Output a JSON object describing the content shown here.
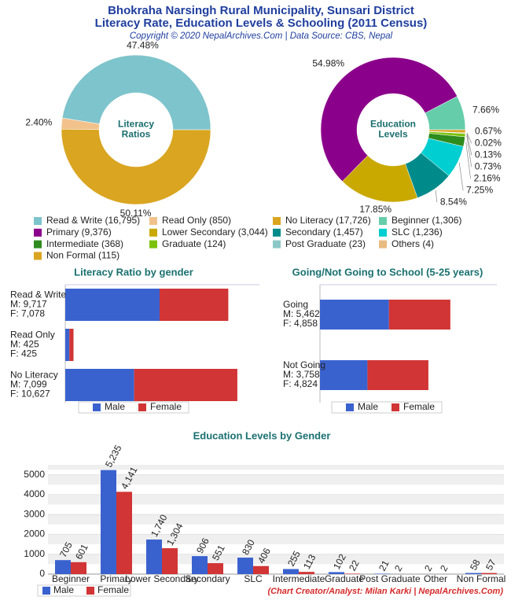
{
  "header": {
    "title": "Bhokraha Narsingh Rural Municipality, Sunsari District",
    "subtitle": "Literacy Rate, Education Levels & Schooling (2011 Census)",
    "credit": "Copyright © 2020 NepalArchives.Com | Data Source: CBS, Nepal"
  },
  "chart_data": [
    {
      "type": "donut",
      "center_label": [
        "Literacy",
        "Ratios"
      ],
      "values": [
        47.48,
        2.4,
        50.11
      ],
      "value_labels": [
        "47.48%",
        "2.40%",
        "50.11%"
      ],
      "colors": [
        "#7ec4cc",
        "#f2c28c",
        "#daa520"
      ],
      "legend_labels": [
        "Read & Write (16,795)",
        "Read Only (850)",
        "No Literacy (17,726)"
      ]
    },
    {
      "type": "donut",
      "center_label": [
        "Education",
        "Levels"
      ],
      "values": [
        7.66,
        54.98,
        17.85,
        8.54,
        7.25,
        2.16,
        0.73,
        0.13,
        0.02,
        0.67
      ],
      "value_labels": [
        "7.66%",
        "54.98%",
        "17.85%",
        "8.54%",
        "7.25%",
        "2.16%",
        "0.73%",
        "0.13%",
        "0.02%",
        "0.67%"
      ],
      "colors": [
        "#66cdaa",
        "#8b008b",
        "#c9a900",
        "#008b8b",
        "#00ced1",
        "#2e8b1e",
        "#7cc20c",
        "#8cc8c8",
        "#e8bb80",
        "#daa520"
      ],
      "legend_labels": [
        "Beginner (1,306)",
        "Primary (9,376)",
        "Lower Secondary (3,044)",
        "Secondary (1,457)",
        "SLC (1,236)",
        "Intermediate (368)",
        "Graduate (124)",
        "Post Graduate (23)",
        "Others (4)",
        "Non Formal (115)"
      ]
    },
    {
      "type": "hbar",
      "stacked": true,
      "title": "Literacy Ratio by gender",
      "categories": [
        "Read & Write",
        "Read Only",
        "No Literacy"
      ],
      "series": [
        {
          "name": "Male",
          "color": "#3a62cf",
          "values": [
            9717,
            425,
            7099
          ],
          "value_labels": [
            "M: 9,717",
            "M: 425",
            "M: 7,099"
          ]
        },
        {
          "name": "Female",
          "color": "#d13535",
          "values": [
            7078,
            425,
            10627
          ],
          "value_labels": [
            "F: 7,078",
            "F: 425",
            "F: 10,627"
          ]
        }
      ],
      "xlim": [
        0,
        20000
      ],
      "legend": "bottom"
    },
    {
      "type": "hbar",
      "stacked": true,
      "title": "Going/Not Going to School (5-25 years)",
      "categories": [
        "Going",
        "Not Going"
      ],
      "series": [
        {
          "name": "Male",
          "color": "#3a62cf",
          "values": [
            5462,
            3758
          ],
          "value_labels": [
            "M: 5,462",
            "M: 3,758"
          ]
        },
        {
          "name": "Female",
          "color": "#d13535",
          "values": [
            4858,
            4824
          ],
          "value_labels": [
            "F: 4,858",
            "F: 4,824"
          ]
        }
      ],
      "xlim": [
        0,
        14000
      ],
      "legend": "bottom"
    },
    {
      "type": "bar",
      "title": "Education Levels by Gender",
      "categories": [
        "Beginner",
        "Primary",
        "Lower Secondary",
        "Secondary",
        "SLC",
        "Intermediate",
        "Graduate",
        "Post Graduate",
        "Other",
        "Non Formal"
      ],
      "series": [
        {
          "name": "Male",
          "color": "#3a62cf",
          "values": [
            705,
            5235,
            1740,
            906,
            830,
            255,
            102,
            21,
            2,
            58
          ],
          "value_labels": [
            "705",
            "5,235",
            "1,740",
            "906",
            "830",
            "255",
            "102",
            "21",
            "2",
            "58"
          ]
        },
        {
          "name": "Female",
          "color": "#d13535",
          "values": [
            601,
            4141,
            1304,
            551,
            406,
            113,
            22,
            2,
            2,
            57
          ],
          "value_labels": [
            "601",
            "4,141",
            "1,304",
            "551",
            "406",
            "113",
            "22",
            "2",
            "2",
            "57"
          ]
        }
      ],
      "ylim": [
        0,
        5500
      ],
      "yticks": [
        0,
        1000,
        2000,
        3000,
        4000,
        5000
      ],
      "grid": true,
      "legend": "bottom-left"
    }
  ],
  "footer": "(Chart Creator/Analyst: Milan Karki | NepalArchives.Com)"
}
